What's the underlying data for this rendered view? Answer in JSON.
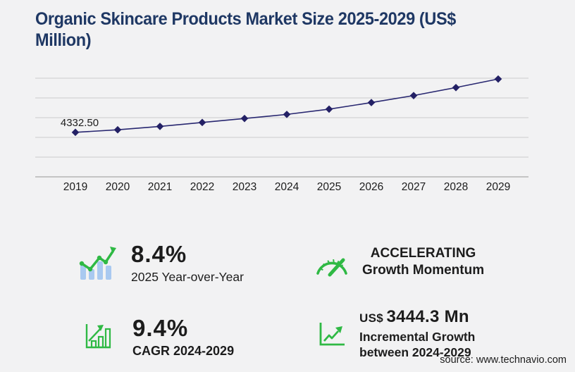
{
  "page": {
    "title": "Organic Skincare Products Market Size 2025-2029 (US$ Million)",
    "source": "source: www.technavio.com"
  },
  "colors": {
    "background": "#f2f2f3",
    "title_text": "#1f3864",
    "text": "#1c1c1c",
    "line": "#282770",
    "marker": "#232065",
    "gridline": "#cccccc",
    "axis_line": "#a9a9a9",
    "green": "#2fb944",
    "icon_blue": "#a9c9f0"
  },
  "chart_data": {
    "type": "line",
    "title": "Organic Skincare Products Market Size 2025-2029 (US$ Million)",
    "categories": [
      "2019",
      "2020",
      "2021",
      "2022",
      "2023",
      "2024",
      "2025",
      "2026",
      "2027",
      "2028",
      "2029"
    ],
    "values": [
      4332.5,
      4580,
      4910,
      5290,
      5680,
      6077,
      6587.5,
      7230,
      7910,
      8690,
      9521.3
    ],
    "labeled_points": [
      {
        "category": "2019",
        "label": "4332.50"
      }
    ],
    "xlabel": "",
    "ylabel": "",
    "ylim": [
      0,
      9600
    ],
    "gridlines": 6,
    "grid": "horizontal",
    "legend": "none",
    "marker": "diamond"
  },
  "stats": [
    {
      "id": "yoy",
      "icon": "bar-chart-trend-icon",
      "value": "8.4%",
      "label": "2025 Year-over-Year"
    },
    {
      "id": "cagr",
      "icon": "growth-bars-icon",
      "value": "9.4%",
      "label": "CAGR 2024-2029"
    },
    {
      "id": "momentum",
      "icon": "speedometer-icon",
      "value": "ACCELERATING",
      "label": "Growth Momentum"
    },
    {
      "id": "incremental",
      "icon": "trend-axes-icon",
      "prefix": "US$",
      "value": "3444.3 Mn",
      "label_lines": [
        "Incremental Growth",
        "between 2024-2029"
      ]
    }
  ]
}
